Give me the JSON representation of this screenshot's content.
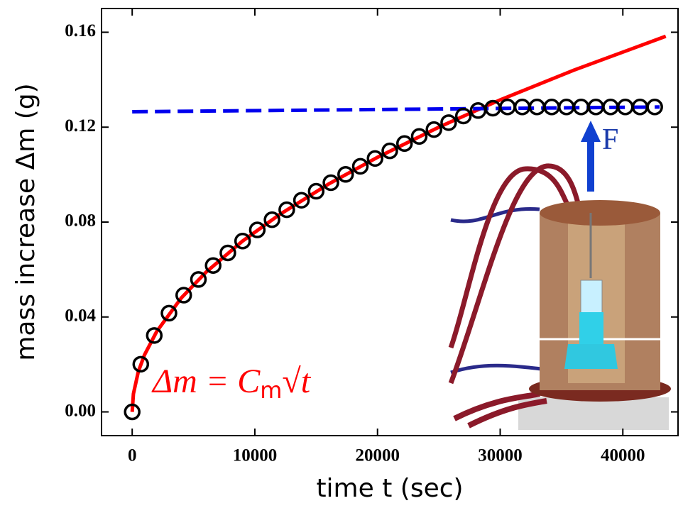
{
  "chart_data": {
    "type": "scatter",
    "xlabel": "time t (sec)",
    "ylabel": "mass increase Δm (g)",
    "annotation": [
      "Δm = C",
      "m",
      "√t"
    ],
    "inset_label": "F",
    "xlim": [
      -2500,
      44500
    ],
    "ylim": [
      -0.01,
      0.17
    ],
    "xticks": [
      0,
      10000,
      20000,
      30000,
      40000
    ],
    "yticks": [
      {
        "value": 0,
        "label": "0.00"
      },
      {
        "value": 0.04,
        "label": "0.04"
      },
      {
        "value": 0.08,
        "label": "0.08"
      },
      {
        "value": 0.12,
        "label": "0.12"
      },
      {
        "value": 0.16,
        "label": "0.16"
      }
    ],
    "series": [
      {
        "style": "solid",
        "color": "#ff0000",
        "x": [
          0,
          100,
          500,
          1000,
          2000,
          4000,
          6000,
          9000,
          12000,
          16000,
          20000,
          25000,
          30000,
          36000,
          43500
        ],
        "values": [
          0,
          0.0076,
          0.017,
          0.024,
          0.0339,
          0.048,
          0.0588,
          0.072,
          0.0831,
          0.096,
          0.1073,
          0.12,
          0.1315,
          0.144,
          0.1583
        ]
      },
      {
        "style": "dashed",
        "color": "#0000ee",
        "x": [
          0,
          43000
        ],
        "values": [
          0.1265,
          0.1285
        ]
      },
      {
        "style": "markers",
        "color": "#000000",
        "x": [
          0,
          700,
          1800,
          3000,
          4200,
          5400,
          6600,
          7800,
          9000,
          10200,
          11400,
          12600,
          13800,
          15000,
          16200,
          17400,
          18600,
          19800,
          21000,
          22200,
          23400,
          24600,
          25800,
          27000,
          28200,
          29400,
          30600,
          31800,
          33000,
          34200,
          35400,
          36600,
          37800,
          39000,
          40200,
          41400,
          42600
        ],
        "values": [
          0,
          0.0201,
          0.0322,
          0.0416,
          0.0492,
          0.0558,
          0.0617,
          0.067,
          0.072,
          0.0767,
          0.081,
          0.0852,
          0.0892,
          0.093,
          0.0966,
          0.1001,
          0.1035,
          0.1068,
          0.11,
          0.1131,
          0.1161,
          0.119,
          0.1219,
          0.1247,
          0.127,
          0.128,
          0.1285,
          0.1285,
          0.1285,
          0.1285,
          0.1285,
          0.1285,
          0.1285,
          0.1285,
          0.1285,
          0.1285,
          0.1285
        ]
      }
    ]
  }
}
